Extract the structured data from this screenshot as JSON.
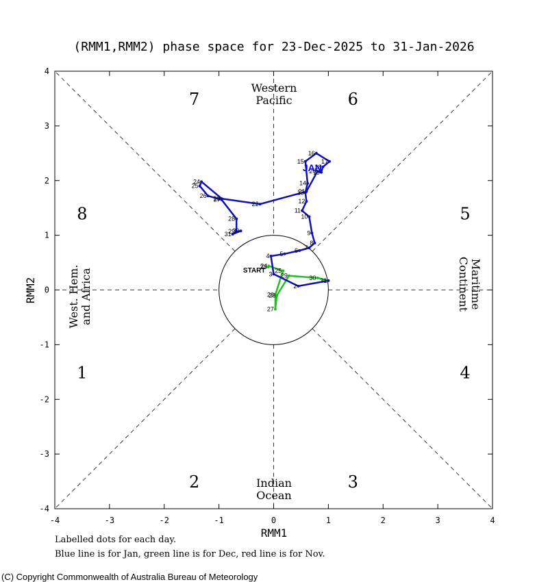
{
  "title": "(RMM1,RMM2) phase space for 23-Dec-2025 to 31-Jan-2026",
  "colors": {
    "jan": "#1010b0",
    "dec": "#20c020",
    "nov": "#ff0000",
    "axes": "#000000"
  },
  "chart_data": {
    "type": "scatter",
    "title": "(RMM1,RMM2) phase space for 23-Dec-2025 to 31-Jan-2026",
    "xlabel": "RMM1",
    "ylabel": "RMM2",
    "xlim": [
      -4,
      4
    ],
    "ylim": [
      -4,
      4
    ],
    "xticks": [
      "-4",
      "-3",
      "-2",
      "-1",
      "0",
      "1",
      "2",
      "3",
      "4"
    ],
    "yticks": [
      "-4",
      "-3",
      "-2",
      "-1",
      "0",
      "1",
      "2",
      "3",
      "4"
    ],
    "unit_circle_radius": 1,
    "phases": [
      {
        "label": "1",
        "x": -3.5,
        "y": -1.5
      },
      {
        "label": "2",
        "x": -1.45,
        "y": -3.5
      },
      {
        "label": "3",
        "x": 1.45,
        "y": -3.5
      },
      {
        "label": "4",
        "x": 3.5,
        "y": -1.5
      },
      {
        "label": "5",
        "x": 3.5,
        "y": 1.4
      },
      {
        "label": "6",
        "x": 1.45,
        "y": 3.5
      },
      {
        "label": "7",
        "x": -1.45,
        "y": 3.5
      },
      {
        "label": "8",
        "x": -3.5,
        "y": 1.4
      }
    ],
    "regions": {
      "top": [
        "Western",
        "Pacific"
      ],
      "bottom": [
        "Indian",
        "Ocean"
      ],
      "left": [
        "West. Hem.",
        "and Africa"
      ],
      "right": [
        "Maritime",
        "Continent"
      ]
    },
    "start_label": "START",
    "month_marker": "JAN",
    "series": [
      {
        "name": "Dec",
        "points": [
          {
            "d": "23",
            "x": -0.1,
            "y": 0.42
          },
          {
            "d": "24",
            "x": -0.09,
            "y": 0.44
          },
          {
            "d": "25",
            "x": 0.17,
            "y": 0.35
          },
          {
            "d": "26",
            "x": 0.03,
            "y": -0.09
          },
          {
            "d": "27",
            "x": 0.03,
            "y": -0.35
          },
          {
            "d": "28",
            "x": 0.06,
            "y": -0.1
          },
          {
            "d": "29",
            "x": 0.28,
            "y": 0.26
          },
          {
            "d": "30",
            "x": 0.8,
            "y": 0.22
          },
          {
            "d": "31",
            "x": 1.0,
            "y": 0.17
          }
        ]
      },
      {
        "name": "Jan",
        "points": [
          {
            "d": "1",
            "x": 1.0,
            "y": 0.17
          },
          {
            "d": "2",
            "x": 0.45,
            "y": 0.07
          },
          {
            "d": "3",
            "x": 0.0,
            "y": 0.29
          },
          {
            "d": "4",
            "x": -0.05,
            "y": 0.62
          },
          {
            "d": "5",
            "x": 0.2,
            "y": 0.66
          },
          {
            "d": "6",
            "x": 0.47,
            "y": 0.72
          },
          {
            "d": "7",
            "x": 0.65,
            "y": 0.77
          },
          {
            "d": "8",
            "x": 0.75,
            "y": 0.86
          },
          {
            "d": "9",
            "x": 0.7,
            "y": 1.04
          },
          {
            "d": "10",
            "x": 0.65,
            "y": 1.34
          },
          {
            "d": "11",
            "x": 0.52,
            "y": 1.45
          },
          {
            "d": "12",
            "x": 0.6,
            "y": 1.62
          },
          {
            "d": "13",
            "x": 0.58,
            "y": 1.78
          },
          {
            "d": "14",
            "x": 0.62,
            "y": 1.95
          },
          {
            "d": "15",
            "x": 0.58,
            "y": 2.35
          },
          {
            "d": "16",
            "x": 0.78,
            "y": 2.5
          },
          {
            "d": "17",
            "x": 1.02,
            "y": 2.35
          },
          {
            "d": "18",
            "x": 0.9,
            "y": 2.25
          },
          {
            "d": "19",
            "x": 0.87,
            "y": 2.15
          },
          {
            "d": "20",
            "x": 0.8,
            "y": 2.17
          },
          {
            "d": "21",
            "x": 0.6,
            "y": 1.8
          },
          {
            "d": "22",
            "x": -0.25,
            "y": 1.57
          },
          {
            "d": "23",
            "x": -0.95,
            "y": 1.67
          },
          {
            "d": "24",
            "x": -1.32,
            "y": 1.98
          },
          {
            "d": "25",
            "x": -1.35,
            "y": 1.9
          },
          {
            "d": "26",
            "x": -1.2,
            "y": 1.72
          },
          {
            "d": "27",
            "x": -0.95,
            "y": 1.65
          },
          {
            "d": "28",
            "x": -0.68,
            "y": 1.3
          },
          {
            "d": "29",
            "x": -0.68,
            "y": 1.07
          },
          {
            "d": "30",
            "x": -0.6,
            "y": 1.08
          },
          {
            "d": "31",
            "x": -0.75,
            "y": 1.02
          }
        ]
      }
    ]
  },
  "footnotes": [
    "Labelled dots for each day.",
    "Blue line is for Jan, green line is for Dec, red line is for Nov."
  ],
  "copyright": "(C) Copyright Commonwealth of Australia Bureau of Meteorology"
}
